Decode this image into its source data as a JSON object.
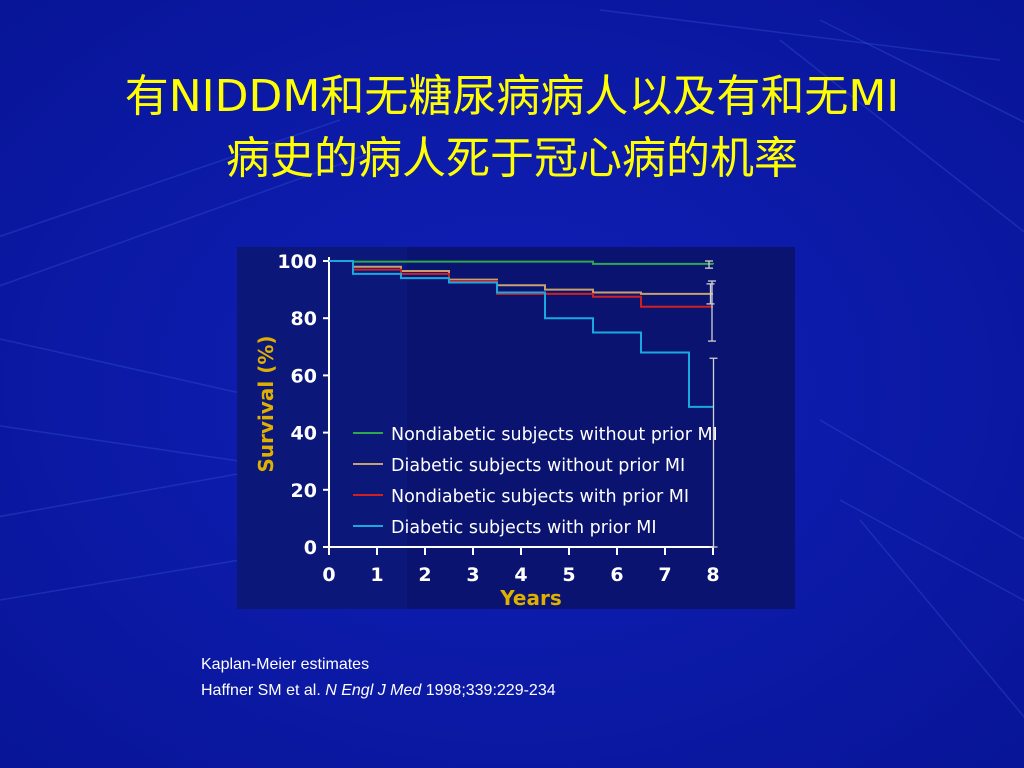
{
  "slide": {
    "title_line1": "有NIDDM和无糖尿病病人以及有和无MI",
    "title_line2": "病史的病人死于冠心病的机率",
    "caption_line1": "Kaplan-Meier estimates",
    "caption_authors": "Haffner SM et al.",
    "caption_journal": "N Engl J Med",
    "caption_citation": "1998;339:229-234"
  },
  "colors": {
    "background": "#0b1aa8",
    "title": "#ffff00",
    "axis_label": "#e0b000"
  },
  "chart_data": {
    "type": "line",
    "xlabel": "Years",
    "ylabel": "Survival (%)",
    "xlim": [
      0,
      8
    ],
    "ylim": [
      0,
      100
    ],
    "xticks": [
      0,
      1,
      2,
      3,
      4,
      5,
      6,
      7,
      8
    ],
    "yticks": [
      0,
      20,
      40,
      60,
      80,
      100
    ],
    "grid": false,
    "legend_position": "lower-right",
    "step": true,
    "series": [
      {
        "name": "Nondiabetic subjects without prior MI",
        "color": "#2fa84a",
        "x": [
          0,
          0.5,
          5.5,
          8
        ],
        "y": [
          100,
          99.8,
          99,
          98.8
        ],
        "end_error": [
          97.5,
          100
        ]
      },
      {
        "name": "Diabetic subjects without prior MI",
        "color": "#c8a070",
        "x": [
          0,
          0.5,
          1.5,
          2.5,
          3.5,
          4.5,
          5.5,
          6.5,
          8
        ],
        "y": [
          100,
          98,
          96.5,
          93.5,
          91.5,
          90,
          89,
          88.5,
          88.5
        ],
        "end_error": [
          85,
          92
        ]
      },
      {
        "name": "Nondiabetic subjects with prior MI",
        "color": "#d02020",
        "x": [
          0,
          0.5,
          1.5,
          2.5,
          3.5,
          4.5,
          5.5,
          6.5,
          8
        ],
        "y": [
          100,
          97,
          95.5,
          93,
          88.5,
          88.5,
          87.5,
          84,
          84
        ],
        "end_error": [
          72,
          93
        ]
      },
      {
        "name": "Diabetic subjects with prior MI",
        "color": "#1aa8e0",
        "x": [
          0,
          0.5,
          1.5,
          2.5,
          3.5,
          4.5,
          5.5,
          6.5,
          7.5,
          8
        ],
        "y": [
          100,
          95.5,
          94,
          92.5,
          89,
          80,
          75,
          68,
          49,
          49
        ],
        "end_error": [
          0,
          66
        ]
      }
    ]
  }
}
